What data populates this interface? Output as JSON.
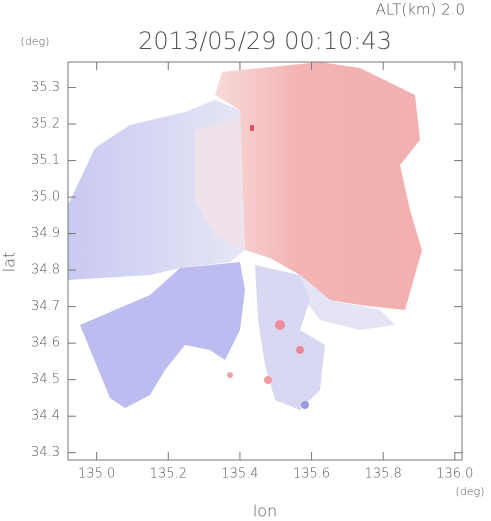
{
  "chart_data": {
    "type": "radar-field",
    "title": "2013/05/29 00:10:43",
    "subtitle": "ALT(km) 2.0",
    "x_unit": "(deg)",
    "y_unit": "(deg)",
    "x_label": "lon",
    "y_label": "lat",
    "xlim": [
      134.92,
      136.02
    ],
    "ylim": [
      34.28,
      35.37
    ],
    "xticks": [
      {
        "value": 135.0,
        "label": "135.0"
      },
      135.2,
      135.4,
      135.6,
      135.8,
      {
        "value": 136.0,
        "label": "136.0"
      }
    ],
    "yticks": [
      34.3,
      34.4,
      34.5,
      34.6,
      34.7,
      34.8,
      34.9,
      {
        "value": 35.0,
        "label": "35.0"
      },
      35.1,
      35.2,
      35.3
    ]
  }
}
